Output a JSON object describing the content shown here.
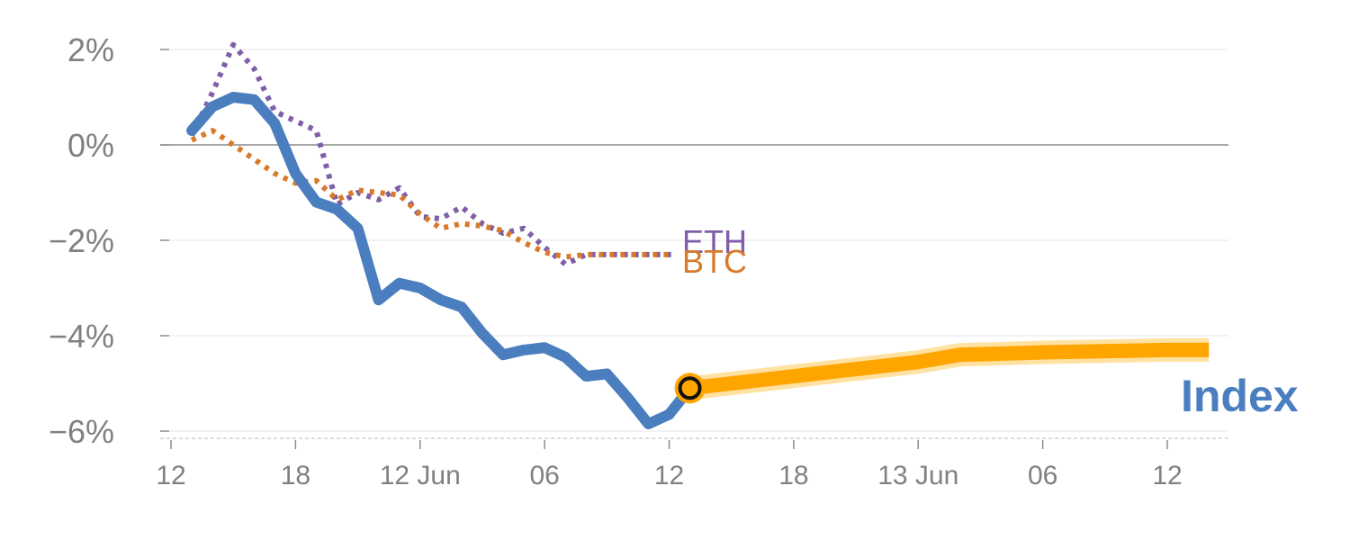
{
  "chart_data": {
    "type": "line",
    "title": "",
    "xlabel": "",
    "ylabel": "",
    "ylim": [
      -6,
      2
    ],
    "y_ticks": [
      {
        "value": 2,
        "label": "2%"
      },
      {
        "value": 0,
        "label": "0%"
      },
      {
        "value": -2,
        "label": "−2%"
      },
      {
        "value": -4,
        "label": "−4%"
      },
      {
        "value": -6,
        "label": "−6%"
      }
    ],
    "x_ticks": [
      {
        "t": 0,
        "label": "12"
      },
      {
        "t": 6,
        "label": "18"
      },
      {
        "t": 12,
        "label": "12 Jun"
      },
      {
        "t": 18,
        "label": "06"
      },
      {
        "t": 24,
        "label": "12"
      },
      {
        "t": 30,
        "label": "18"
      },
      {
        "t": 36,
        "label": "13 Jun"
      },
      {
        "t": 42,
        "label": "06"
      },
      {
        "t": 48,
        "label": "12"
      }
    ],
    "x_range": [
      -1,
      50.5
    ],
    "series": [
      {
        "name": "ETH",
        "label": "ETH",
        "color": "#7f5fa8",
        "style": "dotted",
        "x": [
          1,
          2,
          3,
          4,
          5,
          6,
          7,
          8,
          9,
          10,
          11,
          12,
          13,
          14,
          15,
          16,
          17,
          18,
          19,
          20,
          21,
          22,
          23,
          24,
          24.2
        ],
        "values": [
          0.2,
          1.1,
          2.1,
          1.6,
          0.7,
          0.5,
          0.3,
          -1.25,
          -1.0,
          -1.15,
          -0.9,
          -1.5,
          -1.55,
          -1.3,
          -1.65,
          -1.85,
          -1.75,
          -2.15,
          -2.5,
          -2.3,
          -2.3,
          -2.3,
          -2.3,
          -2.3,
          -2.3
        ]
      },
      {
        "name": "BTC",
        "label": "BTC",
        "color": "#d97a2b",
        "style": "dotted",
        "x": [
          1,
          2,
          3,
          4,
          5,
          6,
          7,
          8,
          9,
          10,
          11,
          12,
          13,
          14,
          15,
          16,
          17,
          18,
          19,
          20,
          21,
          22,
          23,
          24,
          24.2
        ],
        "values": [
          0.1,
          0.3,
          0.0,
          -0.3,
          -0.6,
          -0.8,
          -0.75,
          -1.15,
          -0.95,
          -1.0,
          -1.05,
          -1.45,
          -1.75,
          -1.65,
          -1.7,
          -1.8,
          -2.05,
          -2.25,
          -2.35,
          -2.3,
          -2.3,
          -2.3,
          -2.3,
          -2.3,
          -2.3
        ]
      },
      {
        "name": "Index",
        "label": "Index",
        "color": "#4a7ebf",
        "style": "solid",
        "x": [
          1,
          2,
          3,
          4,
          5,
          6,
          7,
          8,
          9,
          10,
          11,
          12,
          13,
          14,
          15,
          16,
          17,
          18,
          19,
          20,
          21,
          22,
          23,
          24
        ],
        "values": [
          0.3,
          0.8,
          1.0,
          0.95,
          0.45,
          -0.6,
          -1.2,
          -1.35,
          -1.75,
          -3.25,
          -2.9,
          -3.0,
          -3.25,
          -3.4,
          -3.95,
          -4.4,
          -4.3,
          -4.25,
          -4.45,
          -4.85,
          -4.8,
          -5.3,
          -5.85,
          -5.65
        ]
      }
    ],
    "forecast": {
      "name": "Index forecast",
      "color": "#ffa500",
      "band_color": "#ffd98a",
      "x": [
        25,
        30,
        36,
        38,
        42,
        48,
        50
      ],
      "values": [
        -5.1,
        -4.85,
        -4.55,
        -4.4,
        -4.35,
        -4.3,
        -4.3
      ],
      "marker": {
        "x": 25,
        "value": -5.1
      }
    },
    "annotations": [
      {
        "series": "ETH",
        "text": "ETH"
      },
      {
        "series": "BTC",
        "text": "BTC"
      },
      {
        "series": "Index",
        "text": "Index"
      }
    ]
  }
}
